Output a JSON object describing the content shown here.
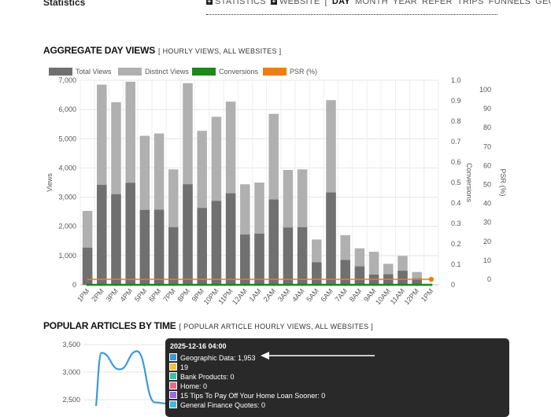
{
  "header": {
    "title": "Statistics",
    "nav": [
      {
        "label": "STATISTICS",
        "plus": true,
        "selected": false
      },
      {
        "label": "WEBSITE",
        "plus": true,
        "selected": false
      },
      {
        "label": "[",
        "plus": false,
        "selected": false
      },
      {
        "label": "DAY",
        "plus": false,
        "selected": true
      },
      {
        "label": "MONTH",
        "plus": false,
        "selected": false
      },
      {
        "label": "YEAR",
        "plus": false,
        "selected": false
      },
      {
        "label": "REFER",
        "plus": false,
        "selected": false
      },
      {
        "label": "TRIPS",
        "plus": false,
        "selected": false
      },
      {
        "label": "FUNNELS",
        "plus": false,
        "selected": false
      },
      {
        "label": "GEO",
        "plus": false,
        "selected": false
      },
      {
        "label": "]",
        "plus": false,
        "selected": false
      }
    ]
  },
  "section1": {
    "title": "AGGREGATE DAY VIEWS",
    "subtitle": "[ HOURLY VIEWS, ALL WEBSITES ]"
  },
  "section2": {
    "title": "POPULAR ARTICLES BY TIME",
    "subtitle": "[ POPULAR ARTICLE HOURLY VIEWS, ALL WEBSITES ]"
  },
  "chart_data": [
    {
      "type": "bar",
      "legend_position": "top-left",
      "grid": true,
      "ylabel": "Views",
      "y2label": "Conversions",
      "y3label": "PSR (%)",
      "ylim": [
        0,
        7000
      ],
      "y2lim": [
        0,
        1.0
      ],
      "y3lim": [
        -5,
        105
      ],
      "y_ticks": [
        "0",
        "1,000",
        "2,000",
        "3,000",
        "4,000",
        "5,000",
        "6,000",
        "7,000"
      ],
      "y2_ticks": [
        "0",
        "0.1",
        "0.2",
        "0.3",
        "0.4",
        "0.5",
        "0.6",
        "0.7",
        "0.8",
        "0.9",
        "1.0"
      ],
      "y3_ticks": [
        "0",
        "10",
        "20",
        "30",
        "40",
        "50",
        "60",
        "70",
        "80",
        "90",
        "100"
      ],
      "categories": [
        "1PM",
        "2PM",
        "3PM",
        "4PM",
        "5PM",
        "6PM",
        "7PM",
        "8PM",
        "9PM",
        "10PM",
        "11PM",
        "12AM",
        "1AM",
        "2AM",
        "3AM",
        "4AM",
        "5AM",
        "6AM",
        "7AM",
        "8AM",
        "9AM",
        "10AM",
        "11AM",
        "12PM",
        "1PM"
      ],
      "series": [
        {
          "name": "Total Views",
          "color": "#707070",
          "values": [
            2530,
            6850,
            6250,
            6950,
            5100,
            5180,
            3950,
            6900,
            5270,
            5750,
            6270,
            3440,
            3500,
            5850,
            3930,
            3950,
            1550,
            6320,
            1700,
            1250,
            1130,
            720,
            990,
            440,
            0
          ]
        },
        {
          "name": "Distinct Views",
          "color": "#b0b0b0",
          "values": [
            1270,
            3420,
            3100,
            3490,
            2560,
            2570,
            1970,
            3440,
            2630,
            2870,
            3130,
            1720,
            1750,
            2920,
            1960,
            1970,
            770,
            3160,
            850,
            630,
            350,
            360,
            480,
            220,
            0
          ]
        },
        {
          "name": "Conversions",
          "color": "#1a8a1a",
          "values": [
            0,
            0,
            0,
            0,
            0,
            0,
            0,
            0,
            0,
            0,
            0,
            0,
            0,
            0,
            0,
            0,
            0,
            0,
            0,
            0,
            0,
            0,
            0,
            0,
            0
          ]
        },
        {
          "name": "PSR (%)",
          "color": "#f07c12",
          "values": [
            0,
            0,
            0,
            0,
            0,
            0,
            0,
            0,
            0,
            0,
            0,
            0,
            0,
            0,
            0,
            0,
            0,
            0,
            0,
            0,
            0,
            0,
            0,
            0,
            0
          ]
        }
      ]
    },
    {
      "type": "line",
      "ylim": [
        2200,
        3500
      ],
      "y_ticks": [
        "2,500",
        "3,000",
        "3,500"
      ],
      "series": [
        {
          "name": "Geographic Data",
          "color": "#3a9ad9",
          "values": [
            2200,
            3350,
            3050,
            3380,
            2450,
            2430
          ]
        }
      ]
    }
  ],
  "tooltip": {
    "title": "2025-12-16 04:00",
    "rows": [
      {
        "label": "Geographic Data: 1,953",
        "color": "#3a9ad9"
      },
      {
        "label": "19",
        "color": "#f0c040"
      },
      {
        "label": "Bank Products: 0",
        "color": "#3cc0a8"
      },
      {
        "label": "Home: 0",
        "color": "#e86a8a"
      },
      {
        "label": "15 Tips To Pay Off Your Home Loan Sooner: 0",
        "color": "#9a6ae0"
      },
      {
        "label": "General Finance Quotes: 0",
        "color": "#40b8e0"
      }
    ]
  }
}
